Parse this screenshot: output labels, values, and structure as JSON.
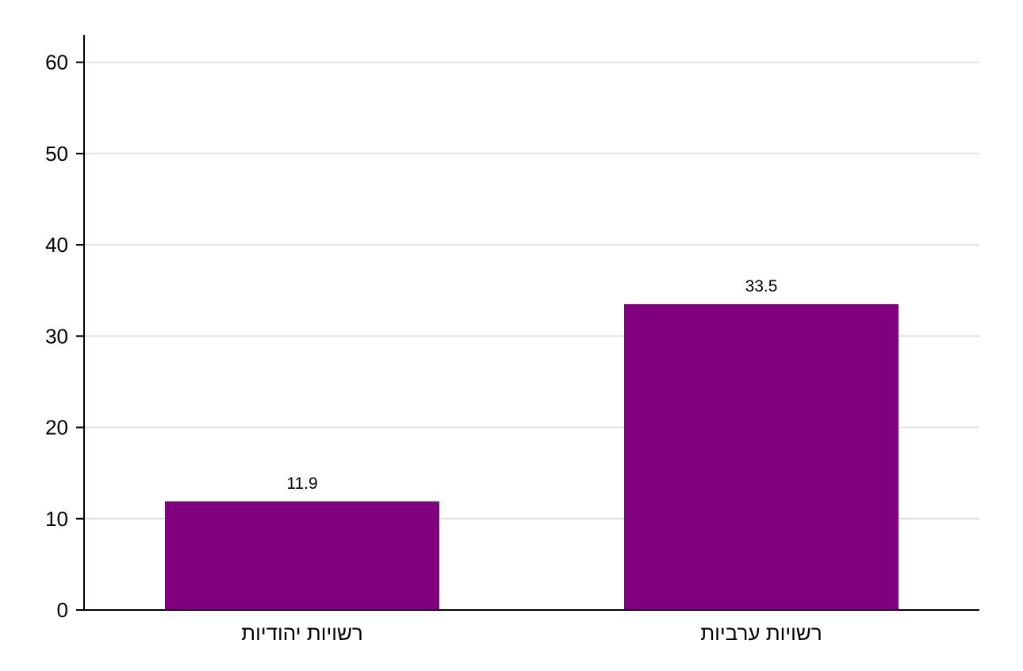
{
  "chart_data": {
    "type": "bar",
    "categories": [
      "רשויות יהודיות",
      "רשויות ערביות"
    ],
    "values": [
      11.9,
      33.5
    ],
    "data_labels": [
      "11.9",
      "33.5"
    ],
    "title": "",
    "xlabel": "",
    "ylabel": "",
    "ylim": [
      0,
      63
    ],
    "yticks": [
      0,
      10,
      20,
      30,
      40,
      50,
      60
    ],
    "ytick_labels": [
      "0",
      "10",
      "20",
      "30",
      "40",
      "50",
      "60"
    ],
    "grid": true,
    "legend": "none",
    "bar_color": "#800080",
    "grid_color": "#e3e3e3"
  }
}
